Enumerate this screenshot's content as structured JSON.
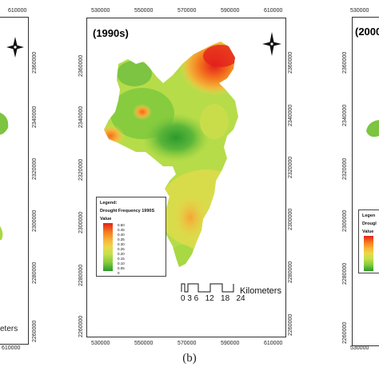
{
  "figure": {
    "caption": "(b)"
  },
  "center_panel": {
    "title": "(1990s)",
    "x_ticks_top": [
      "530000",
      "550000",
      "570000",
      "590000",
      "610000"
    ],
    "x_ticks_bottom": [
      "530000",
      "550000",
      "570000",
      "590000",
      "610000"
    ],
    "y_ticks_left": [
      "2360000",
      "2340000",
      "2320000",
      "2300000",
      "2280000",
      "2260000"
    ],
    "y_ticks_right": [
      "2360000",
      "2340000",
      "2320000",
      "2300000",
      "2280000",
      "2260000"
    ],
    "legend": {
      "title": "Legend:",
      "layer": "Drought Frequency 1990S",
      "field": "Value",
      "values": [
        "0.60",
        "0.45",
        "0.40",
        "0.35",
        "0.30",
        "0.25",
        "0.20",
        "0.15",
        "0.10",
        "0.05",
        "0"
      ]
    },
    "scale": {
      "labels": "0 3 6   12   18   24",
      "unit": "Kilometers"
    },
    "ramp_colors": [
      "#e3201b",
      "#f47a1f",
      "#f8b33a",
      "#ecd84c",
      "#c3e04d",
      "#86cc3e",
      "#2c9a2c"
    ]
  },
  "left_panel": {
    "x_tick_top": "610000",
    "x_tick_bottom": "610000",
    "y_ticks_right": [
      "2360000",
      "2340000",
      "2320000",
      "2300000",
      "2280000",
      "2260000"
    ],
    "scale_text": "eters"
  },
  "right_panel": {
    "title": "(2000",
    "x_tick_top": "530000",
    "x_tick_bottom": "530000",
    "y_ticks_left": [
      "2360000",
      "2340000",
      "2320000",
      "2300000",
      "2280000",
      "2260000"
    ],
    "legend_title": "Legen",
    "legend_layer": "Drougl",
    "legend_field": "Value"
  }
}
